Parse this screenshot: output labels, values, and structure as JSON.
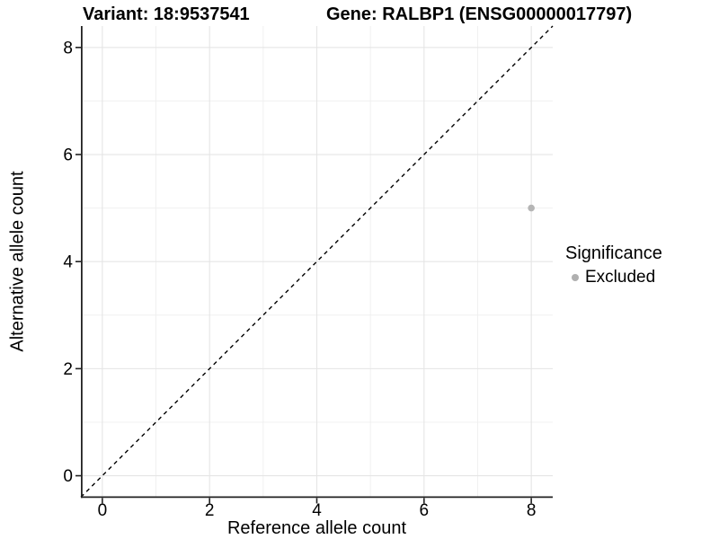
{
  "chart_data": {
    "type": "scatter",
    "titles": {
      "left": "Variant: 18:9537541",
      "right": "Gene: RALBP1 (ENSG00000017797)"
    },
    "xlabel": "Reference allele count",
    "ylabel": "Alternative allele count",
    "xlim": [
      -0.4,
      8.4
    ],
    "ylim": [
      -0.4,
      8.4
    ],
    "xticks": [
      0,
      2,
      4,
      6,
      8
    ],
    "yticks": [
      0,
      2,
      4,
      6,
      8
    ],
    "xminor": [
      1,
      3,
      5,
      7
    ],
    "yminor": [
      1,
      3,
      5,
      7
    ],
    "grid": "major+minor",
    "identity_line": {
      "slope": 1,
      "intercept": 0,
      "style": "dashed",
      "color": "#000000"
    },
    "series": [
      {
        "name": "Excluded",
        "color": "#b5b5b5",
        "points": [
          {
            "x": 8,
            "y": 5
          }
        ]
      }
    ],
    "legend": {
      "title": "Significance",
      "position": "right",
      "items": [
        {
          "label": "Excluded",
          "color": "#b0b0b0"
        }
      ]
    },
    "colors": {
      "background": "#ffffff",
      "grid_major": "#e5e5e5",
      "grid_minor": "#f0f0f0",
      "axis_line": "#222222",
      "tick_mark": "#222222",
      "tick_text": "#000000"
    }
  }
}
